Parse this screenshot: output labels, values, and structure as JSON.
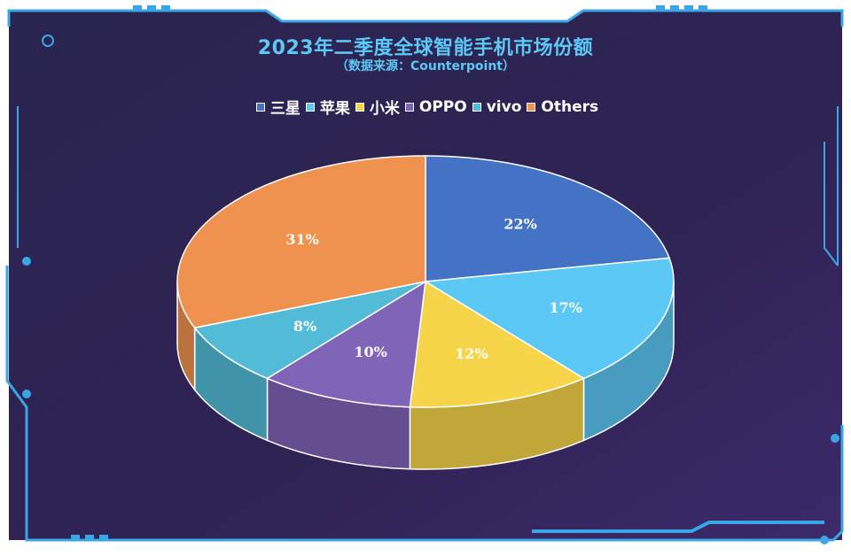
{
  "chart_data": {
    "type": "pie",
    "title": "2023年二季度全球智能手机市场份额",
    "subtitle": "（数据来源：Counterpoint）",
    "categories": [
      "三星",
      "苹果",
      "小米",
      "OPPO",
      "vivo",
      "Others"
    ],
    "values": [
      22,
      17,
      12,
      10,
      8,
      31
    ],
    "labels": [
      "22%",
      "17%",
      "12%",
      "10%",
      "8%",
      "31%"
    ],
    "unit": "%",
    "colors": [
      "#4472c4",
      "#5bc8f5",
      "#f7d54a",
      "#8064b8",
      "#52bcd8",
      "#f0924f"
    ],
    "legend_position": "top-center",
    "style": "3d-pie"
  },
  "theme": {
    "background": "#2d2252",
    "frame_color": "#3aa6e8",
    "title_color": "#5bc8f5"
  }
}
